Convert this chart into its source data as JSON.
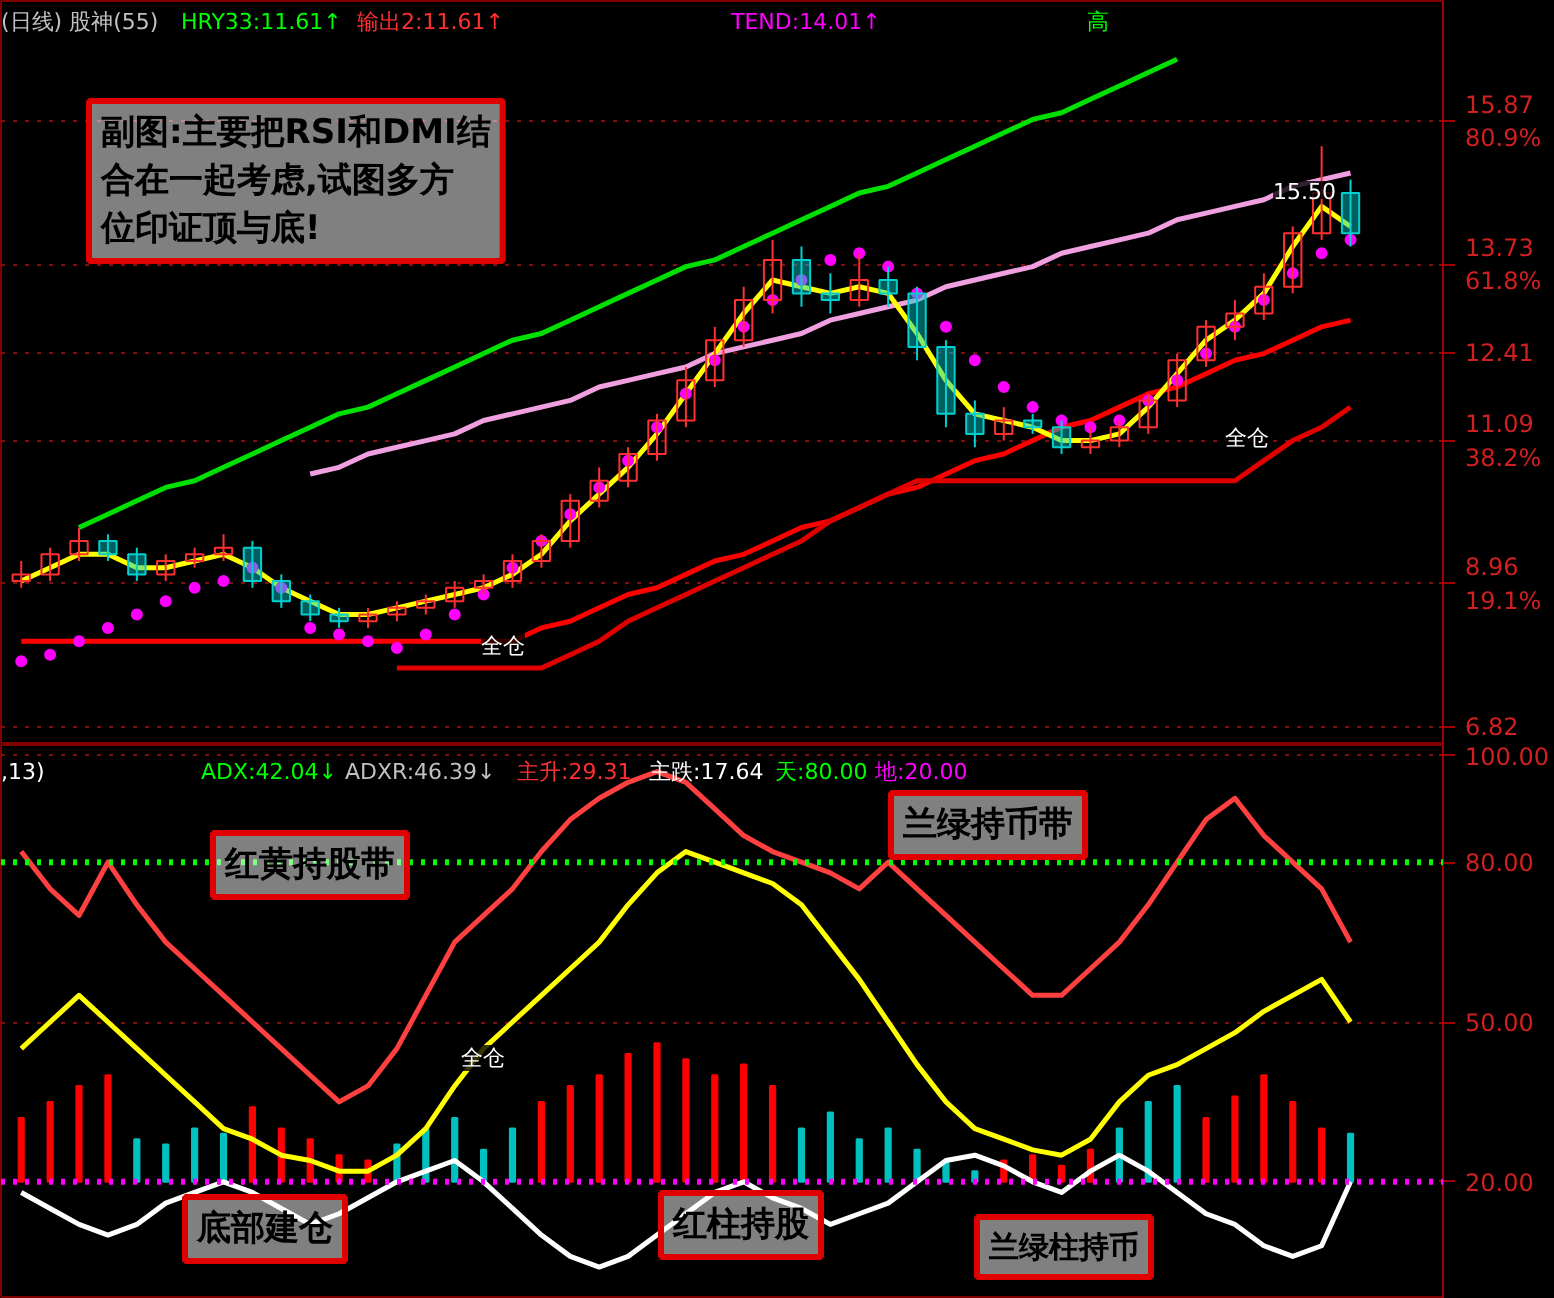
{
  "chart_data": [
    {
      "type": "candlestick",
      "categories": [
        null,
        null,
        null,
        null,
        null,
        null,
        null,
        null,
        null,
        null,
        null,
        null,
        null,
        null,
        null,
        null,
        null,
        null,
        null,
        null,
        null,
        null,
        null,
        null,
        null,
        null,
        null,
        null,
        null,
        null,
        null,
        null,
        null,
        null,
        null,
        null,
        null,
        null,
        null,
        null,
        null,
        null,
        null,
        null,
        null,
        null,
        null
      ],
      "ohlc": [
        [
          9.0,
          9.3,
          8.9,
          9.1
        ],
        [
          9.1,
          9.5,
          9.0,
          9.4
        ],
        [
          9.4,
          9.8,
          9.3,
          9.6
        ],
        [
          9.6,
          9.7,
          9.3,
          9.4
        ],
        [
          9.4,
          9.5,
          9.0,
          9.1
        ],
        [
          9.1,
          9.4,
          9.0,
          9.3
        ],
        [
          9.3,
          9.5,
          9.2,
          9.4
        ],
        [
          9.4,
          9.7,
          9.3,
          9.5
        ],
        [
          9.5,
          9.6,
          8.9,
          9.0
        ],
        [
          9.0,
          9.1,
          8.6,
          8.7
        ],
        [
          8.7,
          8.8,
          8.4,
          8.5
        ],
        [
          8.5,
          8.6,
          8.3,
          8.4
        ],
        [
          8.4,
          8.6,
          8.3,
          8.5
        ],
        [
          8.5,
          8.7,
          8.4,
          8.6
        ],
        [
          8.6,
          8.8,
          8.5,
          8.7
        ],
        [
          8.7,
          9.0,
          8.6,
          8.9
        ],
        [
          8.9,
          9.1,
          8.8,
          9.0
        ],
        [
          9.0,
          9.4,
          8.9,
          9.3
        ],
        [
          9.3,
          9.7,
          9.2,
          9.6
        ],
        [
          9.6,
          10.3,
          9.5,
          10.2
        ],
        [
          10.2,
          10.7,
          10.1,
          10.5
        ],
        [
          10.5,
          11.0,
          10.4,
          10.9
        ],
        [
          10.9,
          11.5,
          10.8,
          11.4
        ],
        [
          11.4,
          12.2,
          11.3,
          12.0
        ],
        [
          12.0,
          12.8,
          11.9,
          12.6
        ],
        [
          12.6,
          13.4,
          12.5,
          13.2
        ],
        [
          13.2,
          14.1,
          13.0,
          13.8
        ],
        [
          13.8,
          14.0,
          13.1,
          13.3
        ],
        [
          13.3,
          13.6,
          13.0,
          13.2
        ],
        [
          13.2,
          13.9,
          13.1,
          13.5
        ],
        [
          13.5,
          13.7,
          13.1,
          13.3
        ],
        [
          13.3,
          13.4,
          12.3,
          12.5
        ],
        [
          12.5,
          12.6,
          11.3,
          11.5
        ],
        [
          11.5,
          11.7,
          11.0,
          11.2
        ],
        [
          11.2,
          11.6,
          11.1,
          11.4
        ],
        [
          11.4,
          11.5,
          11.2,
          11.3
        ],
        [
          11.3,
          11.4,
          10.9,
          11.0
        ],
        [
          11.0,
          11.3,
          10.9,
          11.1
        ],
        [
          11.1,
          11.4,
          11.0,
          11.3
        ],
        [
          11.3,
          11.8,
          11.2,
          11.7
        ],
        [
          11.7,
          12.4,
          11.6,
          12.3
        ],
        [
          12.3,
          12.9,
          12.2,
          12.8
        ],
        [
          12.8,
          13.2,
          12.6,
          13.0
        ],
        [
          13.0,
          13.6,
          12.9,
          13.4
        ],
        [
          13.4,
          14.3,
          13.3,
          14.2
        ],
        [
          14.2,
          15.5,
          14.1,
          14.8
        ],
        [
          14.8,
          15.0,
          14.0,
          14.2
        ]
      ],
      "series": [
        {
          "type": "line",
          "color": "#00e000",
          "values": [
            null,
            null,
            9.8,
            10.0,
            10.2,
            10.4,
            10.5,
            10.7,
            10.9,
            11.1,
            11.3,
            11.5,
            11.6,
            11.8,
            12.0,
            12.2,
            12.4,
            12.6,
            12.7,
            12.9,
            13.1,
            13.3,
            13.5,
            13.7,
            13.8,
            14.0,
            14.2,
            14.4,
            14.6,
            14.8,
            14.9,
            15.1,
            15.3,
            15.5,
            15.7,
            15.9,
            16.0,
            16.2,
            16.4,
            16.6,
            16.8,
            null,
            null,
            null,
            null,
            null,
            null
          ]
        },
        {
          "type": "line",
          "color": "#f0a0e0",
          "values": [
            null,
            null,
            null,
            null,
            null,
            null,
            null,
            null,
            null,
            null,
            10.6,
            10.7,
            10.9,
            11.0,
            11.1,
            11.2,
            11.4,
            11.5,
            11.6,
            11.7,
            11.9,
            12.0,
            12.1,
            12.2,
            12.4,
            12.5,
            12.6,
            12.7,
            12.9,
            13.0,
            13.1,
            13.2,
            13.4,
            13.5,
            13.6,
            13.7,
            13.9,
            14.0,
            14.1,
            14.2,
            14.4,
            14.5,
            14.6,
            14.7,
            14.9,
            15.0,
            15.1
          ]
        },
        {
          "type": "line",
          "color": "#ff0000",
          "values": [
            8.1,
            8.1,
            8.1,
            8.1,
            8.1,
            8.1,
            8.1,
            8.1,
            8.1,
            8.1,
            8.1,
            8.1,
            8.1,
            8.1,
            8.1,
            8.1,
            8.1,
            8.1,
            8.3,
            8.4,
            8.6,
            8.8,
            8.9,
            9.1,
            9.3,
            9.4,
            9.6,
            9.8,
            9.9,
            10.1,
            10.3,
            10.4,
            10.6,
            10.8,
            10.9,
            11.1,
            11.3,
            11.4,
            11.6,
            11.8,
            11.9,
            12.1,
            12.3,
            12.4,
            12.6,
            12.8,
            12.9
          ]
        },
        {
          "type": "line",
          "color": "#e00000",
          "values": [
            null,
            null,
            null,
            null,
            null,
            null,
            null,
            null,
            null,
            null,
            null,
            null,
            null,
            7.7,
            7.7,
            7.7,
            7.7,
            7.7,
            7.7,
            7.9,
            8.1,
            8.4,
            8.6,
            8.8,
            9.0,
            9.2,
            9.4,
            9.6,
            9.9,
            10.1,
            10.3,
            10.5,
            10.5,
            10.5,
            10.5,
            10.5,
            10.5,
            10.5,
            10.5,
            10.5,
            10.5,
            10.5,
            10.5,
            10.8,
            11.1,
            11.3,
            11.6
          ]
        },
        {
          "type": "line",
          "color": "#ffff00",
          "values": [
            9.0,
            9.2,
            9.4,
            9.4,
            9.2,
            9.2,
            9.3,
            9.4,
            9.2,
            8.9,
            8.7,
            8.5,
            8.5,
            8.6,
            8.7,
            8.8,
            8.9,
            9.1,
            9.4,
            9.9,
            10.3,
            10.7,
            11.2,
            11.8,
            12.4,
            13.0,
            13.5,
            13.4,
            13.3,
            13.4,
            13.3,
            12.7,
            12.0,
            11.5,
            11.4,
            11.3,
            11.1,
            11.1,
            11.2,
            11.6,
            12.1,
            12.6,
            12.9,
            13.3,
            14.0,
            14.6,
            14.3
          ]
        },
        {
          "type": "scatter",
          "marker": "circle",
          "color": "#ff00ff",
          "values": [
            7.8,
            7.9,
            8.1,
            8.3,
            8.5,
            8.7,
            8.9,
            9.0,
            9.2,
            8.9,
            8.3,
            8.2,
            8.1,
            8.0,
            8.2,
            8.5,
            8.8,
            9.2,
            9.6,
            10.0,
            10.4,
            10.8,
            11.3,
            11.8,
            12.3,
            12.8,
            13.2,
            13.5,
            13.8,
            13.9,
            13.7,
            13.3,
            12.8,
            12.3,
            11.9,
            11.6,
            11.4,
            11.3,
            11.4,
            11.7,
            12.0,
            12.4,
            12.8,
            13.2,
            13.6,
            13.9,
            14.1
          ]
        }
      ],
      "ylim": [
        6.55,
        17.67
      ],
      "yticks": [
        {
          "value": 15.87,
          "label": "15.87\n80.9%"
        },
        {
          "value": 13.73,
          "label": "13.73\n61.8%"
        },
        12.41,
        {
          "value": 11.09,
          "label": "11.09\n38.2%"
        },
        {
          "value": 8.96,
          "label": "8.96\n19.1%"
        },
        6.82
      ],
      "grid": "y",
      "tick_labels": "y",
      "annotations": [
        "(日线) 股神(55)",
        "HRY33:11.61↑",
        "输出2:11.61↑",
        "TEND:14.01↑",
        "高",
        "副图:主要把RSI和DMI结合在一起考虑,试图多方位印证顶与底!",
        "15.50",
        "全仓",
        "全仓"
      ]
    },
    {
      "type": "bar",
      "categories": [
        null,
        null,
        null,
        null,
        null,
        null,
        null,
        null,
        null,
        null,
        null,
        null,
        null,
        null,
        null,
        null,
        null,
        null,
        null,
        null,
        null,
        null,
        null,
        null,
        null,
        null,
        null,
        null,
        null,
        null,
        null,
        null,
        null,
        null,
        null,
        null,
        null,
        null,
        null,
        null,
        null,
        null,
        null,
        null,
        null,
        null,
        null
      ],
      "base": [
        20,
        20,
        20,
        20,
        20,
        20,
        20,
        20,
        20,
        20,
        20,
        20,
        20,
        20,
        20,
        20,
        20,
        20,
        20,
        20,
        20,
        20,
        20,
        20,
        20,
        20,
        20,
        20,
        20,
        20,
        20,
        20,
        20,
        20,
        20,
        20,
        20,
        20,
        20,
        20,
        20,
        20,
        20,
        20,
        20,
        20,
        20
      ],
      "values": [
        12,
        15,
        18,
        20,
        8,
        7,
        10,
        9,
        14,
        10,
        8,
        5,
        4,
        7,
        10,
        12,
        6,
        10,
        15,
        18,
        20,
        24,
        26,
        23,
        20,
        22,
        18,
        10,
        13,
        8,
        10,
        6,
        4,
        2,
        4,
        5,
        3,
        6,
        10,
        15,
        18,
        12,
        16,
        20,
        15,
        10,
        9
      ],
      "colors": [
        "#ff0000",
        "#ff0000",
        "#ff0000",
        "#ff0000",
        "#00c0c0",
        "#00c0c0",
        "#00c0c0",
        "#00c0c0",
        "#ff0000",
        "#ff0000",
        "#ff0000",
        "#ff0000",
        "#ff0000",
        "#00c0c0",
        "#00c0c0",
        "#00c0c0",
        "#00c0c0",
        "#00c0c0",
        "#ff0000",
        "#ff0000",
        "#ff0000",
        "#ff0000",
        "#ff0000",
        "#ff0000",
        "#ff0000",
        "#ff0000",
        "#ff0000",
        "#00c0c0",
        "#00c0c0",
        "#00c0c0",
        "#00c0c0",
        "#00c0c0",
        "#00c0c0",
        "#00c0c0",
        "#ff0000",
        "#ff0000",
        "#ff0000",
        "#ff0000",
        "#00c0c0",
        "#00c0c0",
        "#00c0c0",
        "#ff0000",
        "#ff0000",
        "#ff0000",
        "#ff0000",
        "#ff0000",
        "#00c0c0"
      ],
      "series": [
        {
          "type": "line",
          "color": "#ff4040",
          "values": [
            82,
            75,
            70,
            80,
            72,
            65,
            60,
            55,
            50,
            45,
            40,
            35,
            38,
            45,
            55,
            65,
            70,
            75,
            82,
            88,
            92,
            95,
            97,
            95,
            90,
            85,
            82,
            80,
            78,
            75,
            80,
            75,
            70,
            65,
            60,
            55,
            55,
            60,
            65,
            72,
            80,
            88,
            92,
            85,
            80,
            75,
            65
          ]
        },
        {
          "type": "line",
          "color": "#ffff00",
          "values": [
            45,
            50,
            55,
            50,
            45,
            40,
            35,
            30,
            28,
            25,
            24,
            22,
            22,
            25,
            30,
            38,
            45,
            50,
            55,
            60,
            65,
            72,
            78,
            82,
            80,
            78,
            76,
            72,
            65,
            58,
            50,
            42,
            35,
            30,
            28,
            26,
            25,
            28,
            35,
            40,
            42,
            45,
            48,
            52,
            55,
            58,
            50
          ]
        },
        {
          "type": "line",
          "color": "#ffffff",
          "values": [
            18,
            15,
            12,
            10,
            12,
            16,
            18,
            20,
            18,
            15,
            12,
            14,
            17,
            20,
            22,
            24,
            20,
            15,
            10,
            6,
            4,
            6,
            10,
            14,
            18,
            20,
            17,
            15,
            12,
            14,
            16,
            20,
            24,
            25,
            23,
            20,
            18,
            22,
            25,
            22,
            18,
            14,
            12,
            8,
            6,
            8,
            20
          ]
        }
      ],
      "ref_lines": [
        {
          "axis": "y",
          "value": 80,
          "color": "#00ff00",
          "line_style": "dotted"
        },
        {
          "axis": "y",
          "value": 20,
          "color": "#ff00ff",
          "line_style": "dotted"
        }
      ],
      "ylim": [
        -2,
        102
      ],
      "yticks": [
        {
          "value": 100,
          "label": "100.00"
        },
        {
          "value": 80,
          "label": "80.00"
        },
        {
          "value": 50,
          "label": "50.00"
        },
        {
          "value": 20,
          "label": "20.00"
        }
      ],
      "grid": "y",
      "tick_labels": "y",
      "annotations": [
        ",13)",
        "ADX:42.04↓",
        "ADXR:46.39↓",
        "主升:29.31",
        "主跌:17.64",
        "天:80.00",
        "地:20.00",
        "红黄持股带",
        "兰绿持币带",
        "底部建仓",
        "红柱持股",
        "兰绿柱持币",
        "全仓"
      ]
    }
  ]
}
